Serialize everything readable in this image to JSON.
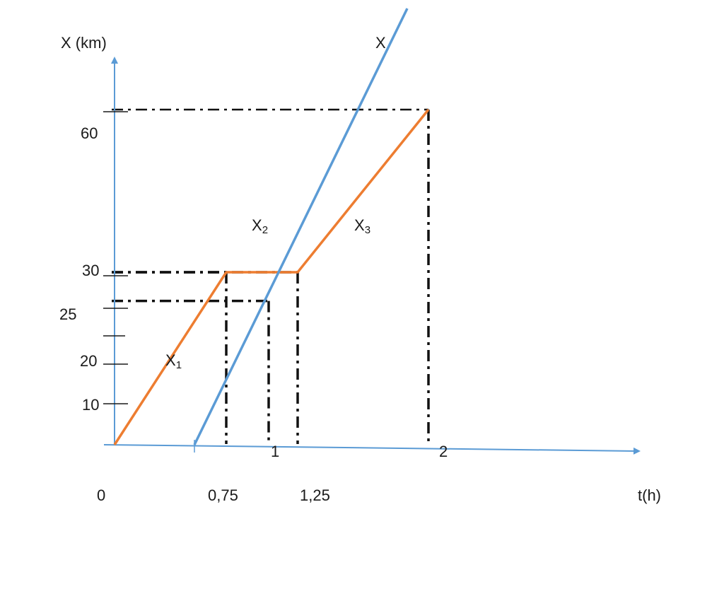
{
  "chart_data": {
    "type": "line",
    "xlabel": "t(h)",
    "ylabel": "X (km)",
    "x_tick_labels": [
      "0",
      "0,75",
      "1",
      "1,25",
      "2"
    ],
    "y_tick_labels": [
      "10",
      "20",
      "25",
      "30",
      "60"
    ],
    "series": [
      {
        "name": "X",
        "color": "#5b9bd5",
        "points": [
          [
            0.5,
            0
          ],
          [
            2.0,
            75
          ]
        ]
      },
      {
        "name": "X1, X2, X3",
        "color": "#ed7d31",
        "points": [
          [
            0,
            0
          ],
          [
            0.75,
            30
          ],
          [
            1.25,
            30
          ],
          [
            2,
            60
          ]
        ]
      }
    ],
    "curve_labels": {
      "x": "X",
      "x1": {
        "base": "X",
        "sub": "1"
      },
      "x2": {
        "base": "X",
        "sub": "2"
      },
      "x3": {
        "base": "X",
        "sub": "3"
      }
    },
    "guides": [
      {
        "x": 0.75,
        "y": 30
      },
      {
        "x": 1.0,
        "y": 25
      },
      {
        "x": 1.25,
        "y": 30
      },
      {
        "x": 2.0,
        "y": 60
      }
    ],
    "legend": "none",
    "grid": false
  }
}
